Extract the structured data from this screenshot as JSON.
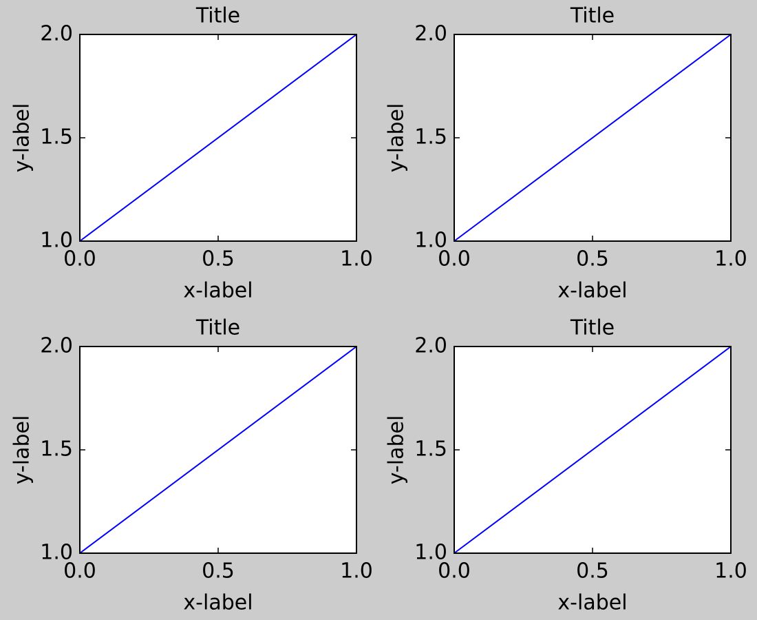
{
  "chart_data": [
    {
      "type": "line",
      "title": "Title",
      "x_label": "x-label",
      "y_label": "y-label",
      "x": [
        0,
        1
      ],
      "values": [
        1,
        2
      ],
      "color": "#0000ff",
      "xlim": [
        0,
        1
      ],
      "ylim": [
        1,
        2
      ],
      "xticks": [
        {
          "value": 0,
          "label": "0.0"
        },
        0.5,
        {
          "value": 1,
          "label": "1.0"
        }
      ],
      "yticks": [
        {
          "value": 1,
          "label": "1.0"
        },
        1.5,
        {
          "value": 2,
          "label": "2.0"
        }
      ]
    },
    {
      "type": "line",
      "title": "Title",
      "x_label": "x-label",
      "y_label": "y-label",
      "x": [
        0,
        1
      ],
      "values": [
        1,
        2
      ],
      "color": "#0000ff",
      "xlim": [
        0,
        1
      ],
      "ylim": [
        1,
        2
      ],
      "xticks": [
        {
          "value": 0,
          "label": "0.0"
        },
        0.5,
        {
          "value": 1,
          "label": "1.0"
        }
      ],
      "yticks": [
        {
          "value": 1,
          "label": "1.0"
        },
        1.5,
        {
          "value": 2,
          "label": "2.0"
        }
      ]
    },
    {
      "type": "line",
      "title": "Title",
      "x_label": "x-label",
      "y_label": "y-label",
      "x": [
        0,
        1
      ],
      "values": [
        1,
        2
      ],
      "color": "#0000ff",
      "xlim": [
        0,
        1
      ],
      "ylim": [
        1,
        2
      ],
      "xticks": [
        {
          "value": 0,
          "label": "0.0"
        },
        0.5,
        {
          "value": 1,
          "label": "1.0"
        }
      ],
      "yticks": [
        {
          "value": 1,
          "label": "1.0"
        },
        1.5,
        {
          "value": 2,
          "label": "2.0"
        }
      ]
    },
    {
      "type": "line",
      "title": "Title",
      "x_label": "x-label",
      "y_label": "y-label",
      "x": [
        0,
        1
      ],
      "values": [
        1,
        2
      ],
      "color": "#0000ff",
      "xlim": [
        0,
        1
      ],
      "ylim": [
        1,
        2
      ],
      "xticks": [
        {
          "value": 0,
          "label": "0.0"
        },
        0.5,
        {
          "value": 1,
          "label": "1.0"
        }
      ],
      "yticks": [
        {
          "value": 1,
          "label": "1.0"
        },
        1.5,
        {
          "value": 2,
          "label": "2.0"
        }
      ]
    }
  ]
}
